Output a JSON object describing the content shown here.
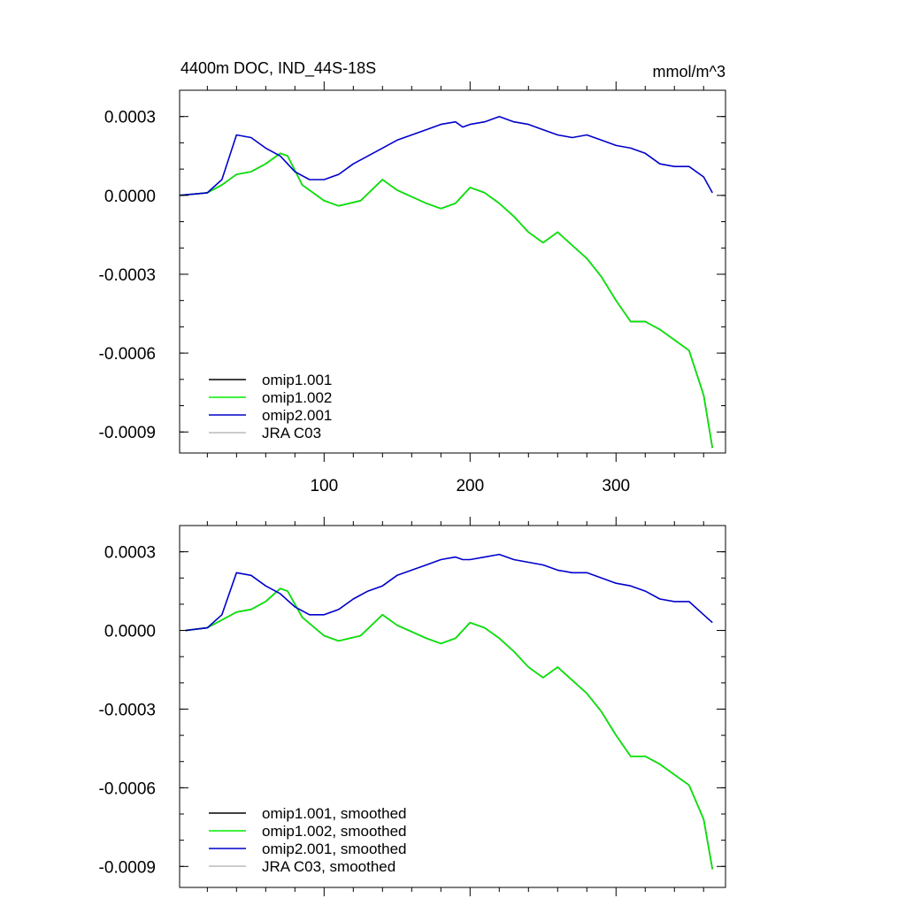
{
  "header": {
    "title_left": "4400m DOC, IND_44S-18S",
    "title_right": "mmol/m^3"
  },
  "colors": {
    "omip1_001": "#000000",
    "omip1_002": "#00ee00",
    "omip2_001": "#0000cc",
    "jra_c03": "#bbbbbb"
  },
  "chart_data": [
    {
      "type": "line",
      "panel": "top",
      "xlim": [
        1,
        375
      ],
      "ylim": [
        -0.00098,
        0.0004
      ],
      "yticks": [
        0.0003,
        0.0,
        -0.0003,
        -0.0006,
        -0.0009
      ],
      "yticklabels": [
        "0.0003",
        "0.0000",
        "-0.0003",
        "-0.0006",
        "-0.0009"
      ],
      "xticks": [
        100,
        200,
        300
      ],
      "xticklabels": [
        "100",
        "200",
        "300"
      ],
      "legend_position": "bottom-left",
      "series": [
        {
          "name": "omip1.001",
          "color": "#000000",
          "x": [
            1,
            20,
            30,
            40,
            50,
            60,
            70,
            75,
            85,
            100,
            110,
            125,
            140,
            150,
            170,
            180,
            190,
            200,
            210,
            220,
            230,
            240,
            250,
            260,
            270,
            280,
            290,
            300,
            310,
            320,
            330,
            340,
            350,
            360,
            366
          ],
          "y": [
            0,
            1e-05,
            4e-05,
            8e-05,
            9e-05,
            0.00012,
            0.00016,
            0.00015,
            4e-05,
            -2e-05,
            -4e-05,
            -2e-05,
            6e-05,
            2e-05,
            -3e-05,
            -5e-05,
            -3e-05,
            3e-05,
            1e-05,
            -3e-05,
            -8e-05,
            -0.00014,
            -0.00018,
            -0.00014,
            -0.00019,
            -0.00024,
            -0.00031,
            -0.0004,
            -0.00048,
            -0.00048,
            -0.00051,
            -0.00055,
            -0.00059,
            -0.00076,
            -0.00096
          ]
        },
        {
          "name": "omip1.002",
          "color": "#00ee00",
          "x": [
            1,
            20,
            30,
            40,
            50,
            60,
            70,
            75,
            85,
            100,
            110,
            125,
            140,
            150,
            170,
            180,
            190,
            200,
            210,
            220,
            230,
            240,
            250,
            260,
            270,
            280,
            290,
            300,
            310,
            320,
            330,
            340,
            350,
            360,
            366
          ],
          "y": [
            0,
            1e-05,
            4e-05,
            8e-05,
            9e-05,
            0.00012,
            0.00016,
            0.00015,
            4e-05,
            -2e-05,
            -4e-05,
            -2e-05,
            6e-05,
            2e-05,
            -3e-05,
            -5e-05,
            -3e-05,
            3e-05,
            1e-05,
            -3e-05,
            -8e-05,
            -0.00014,
            -0.00018,
            -0.00014,
            -0.00019,
            -0.00024,
            -0.00031,
            -0.0004,
            -0.00048,
            -0.00048,
            -0.00051,
            -0.00055,
            -0.00059,
            -0.00076,
            -0.00096
          ]
        },
        {
          "name": "omip2.001",
          "color": "#0000cc",
          "x": [
            1,
            20,
            30,
            40,
            50,
            60,
            70,
            80,
            90,
            100,
            110,
            120,
            130,
            140,
            150,
            160,
            170,
            180,
            190,
            195,
            200,
            210,
            220,
            230,
            240,
            250,
            260,
            270,
            280,
            290,
            300,
            310,
            320,
            330,
            340,
            350,
            360,
            366
          ],
          "y": [
            0,
            1e-05,
            6e-05,
            0.00023,
            0.00022,
            0.00018,
            0.00015,
            9e-05,
            6e-05,
            6e-05,
            8e-05,
            0.00012,
            0.00015,
            0.00018,
            0.00021,
            0.00023,
            0.00025,
            0.00027,
            0.00028,
            0.00026,
            0.00027,
            0.00028,
            0.0003,
            0.00028,
            0.00027,
            0.00025,
            0.00023,
            0.00022,
            0.00023,
            0.00021,
            0.00019,
            0.00018,
            0.00016,
            0.00012,
            0.00011,
            0.00011,
            7e-05,
            1e-05
          ]
        },
        {
          "name": "JRA C03",
          "color": "#bbbbbb",
          "x": [],
          "y": []
        }
      ]
    },
    {
      "type": "line",
      "panel": "bottom",
      "xlim": [
        1,
        375
      ],
      "ylim": [
        -0.00098,
        0.0004
      ],
      "yticks": [
        0.0003,
        0.0,
        -0.0003,
        -0.0006,
        -0.0009
      ],
      "yticklabels": [
        "0.0003",
        "0.0000",
        "-0.0003",
        "-0.0006",
        "-0.0009"
      ],
      "xticks": [
        100,
        200,
        300
      ],
      "xticklabels": [],
      "legend_position": "bottom-left",
      "series": [
        {
          "name": "omip1.001, smoothed",
          "color": "#000000",
          "x": [
            5,
            20,
            30,
            40,
            50,
            60,
            70,
            75,
            85,
            100,
            110,
            125,
            140,
            150,
            170,
            180,
            190,
            200,
            210,
            220,
            230,
            240,
            250,
            260,
            270,
            280,
            290,
            300,
            310,
            320,
            330,
            340,
            350,
            360,
            366
          ],
          "y": [
            0,
            1e-05,
            4e-05,
            7e-05,
            8e-05,
            0.00011,
            0.00016,
            0.00015,
            5e-05,
            -2e-05,
            -4e-05,
            -2e-05,
            6e-05,
            2e-05,
            -3e-05,
            -5e-05,
            -3e-05,
            3e-05,
            1e-05,
            -3e-05,
            -8e-05,
            -0.00014,
            -0.00018,
            -0.00014,
            -0.00019,
            -0.00024,
            -0.00031,
            -0.0004,
            -0.00048,
            -0.00048,
            -0.00051,
            -0.00055,
            -0.00059,
            -0.00072,
            -0.00091
          ]
        },
        {
          "name": "omip1.002, smoothed",
          "color": "#00ee00",
          "x": [
            5,
            20,
            30,
            40,
            50,
            60,
            70,
            75,
            85,
            100,
            110,
            125,
            140,
            150,
            170,
            180,
            190,
            200,
            210,
            220,
            230,
            240,
            250,
            260,
            270,
            280,
            290,
            300,
            310,
            320,
            330,
            340,
            350,
            360,
            366
          ],
          "y": [
            0,
            1e-05,
            4e-05,
            7e-05,
            8e-05,
            0.00011,
            0.00016,
            0.00015,
            5e-05,
            -2e-05,
            -4e-05,
            -2e-05,
            6e-05,
            2e-05,
            -3e-05,
            -5e-05,
            -3e-05,
            3e-05,
            1e-05,
            -3e-05,
            -8e-05,
            -0.00014,
            -0.00018,
            -0.00014,
            -0.00019,
            -0.00024,
            -0.00031,
            -0.0004,
            -0.00048,
            -0.00048,
            -0.00051,
            -0.00055,
            -0.00059,
            -0.00072,
            -0.00091
          ]
        },
        {
          "name": "omip2.001, smoothed",
          "color": "#0000cc",
          "x": [
            5,
            20,
            30,
            40,
            50,
            60,
            70,
            80,
            90,
            100,
            110,
            120,
            130,
            140,
            150,
            160,
            170,
            180,
            190,
            195,
            200,
            210,
            220,
            230,
            240,
            250,
            260,
            270,
            280,
            290,
            300,
            310,
            320,
            330,
            340,
            350,
            360,
            366
          ],
          "y": [
            0,
            1e-05,
            6e-05,
            0.00022,
            0.00021,
            0.00017,
            0.00014,
            9e-05,
            6e-05,
            6e-05,
            8e-05,
            0.00012,
            0.00015,
            0.00017,
            0.00021,
            0.00023,
            0.00025,
            0.00027,
            0.00028,
            0.00027,
            0.00027,
            0.00028,
            0.00029,
            0.00027,
            0.00026,
            0.00025,
            0.00023,
            0.00022,
            0.00022,
            0.0002,
            0.00018,
            0.00017,
            0.00015,
            0.00012,
            0.00011,
            0.00011,
            6e-05,
            3e-05
          ]
        },
        {
          "name": "JRA C03, smoothed",
          "color": "#bbbbbb",
          "x": [],
          "y": []
        }
      ]
    }
  ]
}
